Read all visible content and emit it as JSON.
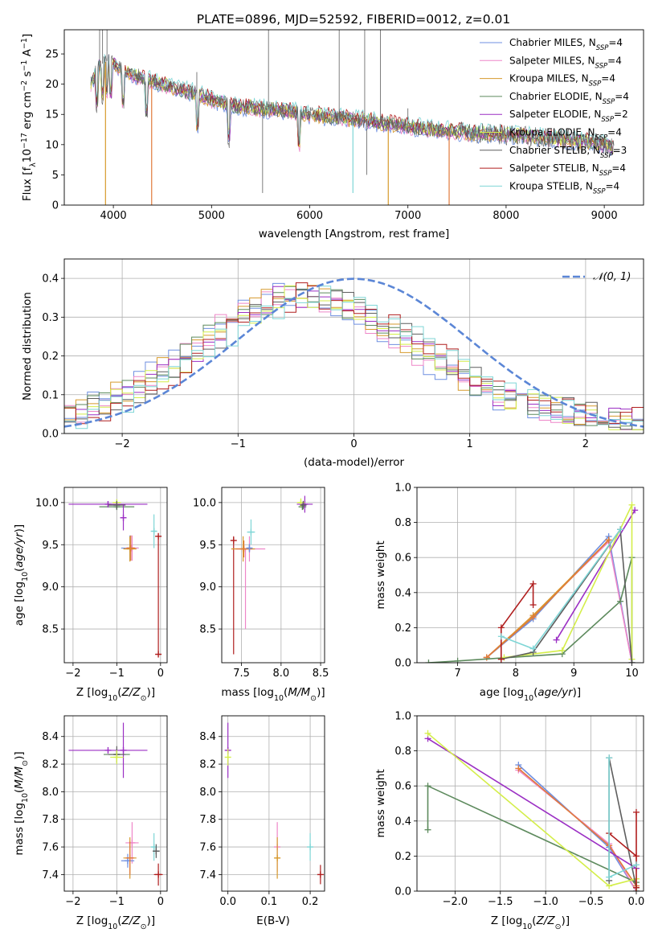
{
  "title": "PLATE=0896, MJD=52592, FIBERID=0012, z=0.01",
  "colors": {
    "chabrier_miles": "#6f8fe0",
    "salpeter_miles": "#ee86c8",
    "kroupa_miles": "#d69a2c",
    "chabrier_elodie": "#5d8a5d",
    "salpeter_elodie": "#9b2fc4",
    "kroupa_elodie": "#d4ee4a",
    "chabrier_stelib": "#5e5e5e",
    "salpeter_stelib": "#b01e1e",
    "kroupa_stelib": "#7fd6d6",
    "orange_line": "#e07a3a",
    "normal": "#5b86d6"
  },
  "chart_data": [
    {
      "id": "spectrum",
      "type": "line",
      "title": "PLATE=0896, MJD=52592, FIBERID=0012, z=0.01",
      "xlabel": "wavelength [Angstrom, rest frame]",
      "ylabel": "Flux [fλ10⁻¹⁷ erg cm⁻² s⁻¹ A⁻¹]",
      "xlim": [
        3500,
        9400
      ],
      "ylim": [
        0,
        29
      ],
      "xticks": [
        4000,
        5000,
        6000,
        7000,
        8000,
        9000
      ],
      "yticks": [
        0,
        5,
        10,
        15,
        20,
        25
      ],
      "legend_position": "top-right",
      "legend": [
        "Chabrier MILES, N_SSP=4",
        "Salpeter MILES, N_SSP=4",
        "Kroupa MILES, N_SSP=4",
        "Chabrier ELODIE, N_SSP=4",
        "Salpeter ELODIE, N_SSP=2",
        "Kroupa ELODIE, N_SSP=4",
        "Chabrier STELIB, N_SSP=3",
        "Salpeter STELIB, N_SSP=4",
        "Kroupa STELIB, N_SSP=4"
      ],
      "continuum": {
        "x": [
          3770,
          3850,
          3950,
          4050,
          4150,
          4300,
          4500,
          4700,
          4850,
          5000,
          5200,
          5500,
          5800,
          6000,
          6300,
          6560,
          6800,
          7000,
          7300,
          7600,
          7900,
          8200,
          8500,
          8800,
          9000,
          9100
        ],
        "y": [
          20,
          23,
          24,
          23,
          22,
          21,
          20,
          19,
          18.5,
          17.5,
          16.5,
          16,
          15.5,
          15,
          14.5,
          14,
          13.5,
          13,
          12.5,
          12,
          11.8,
          11.5,
          11,
          10.5,
          10,
          9.5
        ]
      }
    },
    {
      "id": "residuals",
      "type": "line",
      "xlabel": "(data-model)/error",
      "ylabel": "Normed distribution",
      "xlim": [
        -2.5,
        2.5
      ],
      "ylim": [
        0,
        0.45
      ],
      "xticks": [
        -2,
        -1,
        0,
        1,
        2
      ],
      "yticks": [
        0.0,
        0.1,
        0.2,
        0.3,
        0.4
      ],
      "legend": [
        "𝒩(0, 1)"
      ],
      "legend_position": "top-right",
      "hist_profile": {
        "x": [
          -2.5,
          -2.2,
          -1.9,
          -1.6,
          -1.3,
          -1.0,
          -0.7,
          -0.5,
          -0.3,
          0.0,
          0.3,
          0.6,
          0.9,
          1.2,
          1.5,
          1.8,
          2.1,
          2.5
        ],
        "y": [
          0.04,
          0.07,
          0.11,
          0.16,
          0.23,
          0.29,
          0.34,
          0.36,
          0.35,
          0.33,
          0.28,
          0.21,
          0.16,
          0.11,
          0.08,
          0.06,
          0.04,
          0.03
        ]
      }
    },
    {
      "id": "age-vs-Z",
      "type": "scatter",
      "xlabel": "Z [log10(Z/Z⊙)]",
      "ylabel": "age  [log10(age/yr)]",
      "xlim": [
        -2.2,
        0.15
      ],
      "ylim": [
        8.1,
        10.18
      ],
      "xticks": [
        -2,
        -1,
        0
      ],
      "yticks": [
        8.5,
        9.0,
        9.5,
        10.0
      ],
      "points": [
        {
          "c": "chabrier_miles",
          "x": -0.7,
          "y": 9.46,
          "xe": 0.2,
          "ye": 0.15
        },
        {
          "c": "salpeter_miles",
          "x": -0.65,
          "y": 9.46,
          "xe": 0.15,
          "ye": 0.15
        },
        {
          "c": "kroupa_miles",
          "x": -0.7,
          "y": 9.45,
          "xe": 0.15,
          "ye": 0.15
        },
        {
          "c": "orange_line",
          "x": -0.68,
          "y": 9.46,
          "xe": 0.1,
          "ye": 0.15
        },
        {
          "c": "chabrier_elodie",
          "x": -1.0,
          "y": 9.95,
          "xe": 0.4,
          "ye": 0.03
        },
        {
          "c": "salpeter_elodie",
          "x": -1.2,
          "y": 9.98,
          "xe": 0.9,
          "ye": 0.03
        },
        {
          "c": "kroupa_elodie",
          "x": -1.0,
          "y": 10.0,
          "xe": 0.1,
          "ye": 0.04
        },
        {
          "c": "chabrier_stelib",
          "x": -1.0,
          "y": 9.97,
          "xe": 0.2,
          "ye": 0.05
        },
        {
          "c": "salpeter_stelib",
          "x": -0.05,
          "y": 8.2,
          "xe": 0.05,
          "ye": 0.0
        },
        {
          "c": "salpeter_stelib",
          "x": -0.05,
          "y": 9.6,
          "xe": 0.0,
          "ye": 0.0
        },
        {
          "c": "kroupa_stelib",
          "x": -0.15,
          "y": 9.66,
          "xe": 0.05,
          "ye": 0.2
        },
        {
          "c": "salpeter_elodie",
          "x": -0.85,
          "y": 9.82,
          "xe": 0.0,
          "ye": 0.15
        }
      ],
      "vlines": [
        {
          "c": "salpeter_stelib",
          "x": -0.05,
          "y0": 8.2,
          "y1": 9.6
        }
      ]
    },
    {
      "id": "age-vs-mass",
      "type": "scatter",
      "xlabel": "mass [log10(M/M⊙)]",
      "ylabel": "",
      "xlim": [
        7.25,
        8.55
      ],
      "ylim": [
        8.1,
        10.18
      ],
      "xticks": [
        7.5,
        8.0,
        8.5
      ],
      "yticks": [
        8.5,
        9.0,
        9.5,
        10.0
      ],
      "points": [
        {
          "c": "salpeter_miles",
          "x": 7.6,
          "y": 9.45,
          "xe": 0.2,
          "ye": 0.15
        },
        {
          "c": "kroupa_miles",
          "x": 7.52,
          "y": 9.45,
          "xe": 0.15,
          "ye": 0.15
        },
        {
          "c": "orange_line",
          "x": 7.53,
          "y": 9.45,
          "xe": 0.1,
          "ye": 0.1
        },
        {
          "c": "chabrier_elodie",
          "x": 8.27,
          "y": 9.95,
          "xe": 0.05,
          "ye": 0.03
        },
        {
          "c": "salpeter_elodie",
          "x": 8.3,
          "y": 9.98,
          "xe": 0.1,
          "ye": 0.1
        },
        {
          "c": "kroupa_elodie",
          "x": 8.25,
          "y": 10.0,
          "xe": 0.05,
          "ye": 0.05
        },
        {
          "c": "chabrier_stelib",
          "x": 8.28,
          "y": 9.97,
          "xe": 0.04,
          "ye": 0.05
        },
        {
          "c": "salpeter_stelib",
          "x": 7.4,
          "y": 9.55,
          "xe": 0.0,
          "ye": 0.0
        },
        {
          "c": "kroupa_stelib",
          "x": 7.62,
          "y": 9.65,
          "xe": 0.05,
          "ye": 0.15
        },
        {
          "c": "chabrier_miles",
          "x": 7.6,
          "y": 9.46,
          "xe": 0.03,
          "ye": 0.05
        }
      ],
      "vlines": [
        {
          "c": "salpeter_stelib",
          "x": 7.4,
          "y0": 8.2,
          "y1": 9.6
        },
        {
          "c": "salpeter_miles",
          "x": 7.55,
          "y0": 8.5,
          "y1": 9.45
        }
      ]
    },
    {
      "id": "weight-vs-age",
      "type": "line",
      "xlabel": "age  [log10(age/yr)]",
      "ylabel": "mass weight",
      "xlim": [
        6.3,
        10.2
      ],
      "ylim": [
        0,
        1.0
      ],
      "xticks": [
        7,
        8,
        9,
        10
      ],
      "yticks": [
        0.0,
        0.2,
        0.4,
        0.6,
        0.8,
        1.0
      ],
      "series": [
        {
          "c": "chabrier_miles",
          "x": [
            7.5,
            8.3,
            9.6,
            10.0
          ],
          "y": [
            0.03,
            0.25,
            0.72,
            0.0
          ]
        },
        {
          "c": "salpeter_miles",
          "x": [
            7.5,
            8.3,
            9.6,
            10.0
          ],
          "y": [
            0.03,
            0.27,
            0.69,
            0.0
          ]
        },
        {
          "c": "kroupa_miles",
          "x": [
            7.5,
            8.3,
            9.6
          ],
          "y": [
            0.03,
            0.27,
            0.7
          ]
        },
        {
          "c": "orange_line",
          "x": [
            7.5,
            8.3,
            9.6
          ],
          "y": [
            0.03,
            0.26,
            0.7
          ]
        },
        {
          "c": "chabrier_elodie",
          "x": [
            6.5,
            7.0,
            8.8,
            9.8,
            10.0,
            10.0
          ],
          "y": [
            0.0,
            0.01,
            0.05,
            0.35,
            0.6,
            0.0
          ]
        },
        {
          "c": "salpeter_elodie",
          "x": [
            8.7,
            10.05
          ],
          "y": [
            0.13,
            0.87
          ]
        },
        {
          "c": "kroupa_elodie",
          "x": [
            7.8,
            8.8,
            10.0,
            10.0
          ],
          "y": [
            0.03,
            0.07,
            0.9,
            0.02
          ]
        },
        {
          "c": "chabrier_stelib",
          "x": [
            7.75,
            8.3,
            9.8,
            10.0
          ],
          "y": [
            0.02,
            0.06,
            0.76,
            0.0
          ]
        },
        {
          "c": "salpeter_stelib",
          "x": [
            7.75,
            7.75,
            8.3,
            8.3
          ],
          "y": [
            0.02,
            0.2,
            0.45,
            0.33
          ]
        },
        {
          "c": "kroupa_stelib",
          "x": [
            7.75,
            8.3,
            9.8
          ],
          "y": [
            0.15,
            0.08,
            0.76
          ]
        }
      ]
    },
    {
      "id": "mass-vs-Z",
      "type": "scatter",
      "xlabel": "Z [log10(Z/Z⊙)]",
      "ylabel": "mass [log10(M/M⊙)]",
      "xlim": [
        -2.2,
        0.15
      ],
      "ylim": [
        7.28,
        8.55
      ],
      "xticks": [
        -2,
        -1,
        0
      ],
      "yticks": [
        7.4,
        7.6,
        7.8,
        8.0,
        8.2,
        8.4
      ],
      "points": [
        {
          "c": "salpeter_elodie",
          "x": -1.2,
          "y": 8.3,
          "xe": 0.9,
          "ye": 0.0
        },
        {
          "c": "salpeter_elodie",
          "x": -0.85,
          "y": 8.3,
          "xe": 0.0,
          "ye": 0.2
        },
        {
          "c": "chabrier_elodie",
          "x": -1.0,
          "y": 8.27,
          "xe": 0.3,
          "ye": 0.04
        },
        {
          "c": "chabrier_stelib",
          "x": -1.0,
          "y": 8.27,
          "xe": 0.2,
          "ye": 0.06
        },
        {
          "c": "kroupa_elodie",
          "x": -1.0,
          "y": 8.25,
          "xe": 0.15,
          "ye": 0.05
        },
        {
          "c": "salpeter_miles",
          "x": -0.65,
          "y": 7.63,
          "xe": 0.15,
          "ye": 0.15
        },
        {
          "c": "kroupa_miles",
          "x": -0.7,
          "y": 7.52,
          "xe": 0.15,
          "ye": 0.15
        },
        {
          "c": "chabrier_miles",
          "x": -0.75,
          "y": 7.5,
          "xe": 0.15,
          "ye": 0.05
        },
        {
          "c": "orange_line",
          "x": -0.7,
          "y": 7.52,
          "xe": 0.1,
          "ye": 0.12
        },
        {
          "c": "kroupa_stelib",
          "x": -0.15,
          "y": 7.6,
          "xe": 0.05,
          "ye": 0.1
        },
        {
          "c": "chabrier_stelib",
          "x": -0.1,
          "y": 7.57,
          "xe": 0.08,
          "ye": 0.05
        },
        {
          "c": "salpeter_stelib",
          "x": -0.05,
          "y": 7.4,
          "xe": 0.1,
          "ye": 0.08
        }
      ]
    },
    {
      "id": "mass-vs-ebv",
      "type": "scatter",
      "xlabel": "E(B-V)",
      "ylabel": "",
      "xlim": [
        -0.015,
        0.235
      ],
      "ylim": [
        7.28,
        8.55
      ],
      "xticks": [
        0.0,
        0.1,
        0.2
      ],
      "yticks": [
        7.4,
        7.6,
        7.8,
        8.0,
        8.2,
        8.4
      ],
      "points": [
        {
          "c": "salpeter_elodie",
          "x": 0.0,
          "y": 8.3,
          "xe": 0.0,
          "ye": 0.2
        },
        {
          "c": "kroupa_elodie",
          "x": 0.0,
          "y": 8.25,
          "xe": 0.0,
          "ye": 0.06
        },
        {
          "c": "salpeter_miles",
          "x": 0.12,
          "y": 7.6,
          "xe": 0.0,
          "ye": 0.18
        },
        {
          "c": "kroupa_miles",
          "x": 0.12,
          "y": 7.52,
          "xe": 0.0,
          "ye": 0.15
        },
        {
          "c": "kroupa_stelib",
          "x": 0.2,
          "y": 7.6,
          "xe": 0.0,
          "ye": 0.1
        },
        {
          "c": "salpeter_stelib",
          "x": 0.225,
          "y": 7.4,
          "xe": 0.0,
          "ye": 0.07
        }
      ]
    },
    {
      "id": "weight-vs-Z",
      "type": "line",
      "xlabel": "Z [log10(Z/Z⊙)]",
      "ylabel": "mass weight",
      "xlim": [
        -2.42,
        0.08
      ],
      "ylim": [
        0,
        1.0
      ],
      "xticks": [
        -2.0,
        -1.5,
        -1.0,
        -0.5,
        0.0
      ],
      "yticks": [
        0.0,
        0.2,
        0.4,
        0.6,
        0.8,
        1.0
      ],
      "series": [
        {
          "c": "chabrier_miles",
          "x": [
            -1.3,
            -0.3,
            0.0
          ],
          "y": [
            0.72,
            0.25,
            0.0
          ]
        },
        {
          "c": "salpeter_miles",
          "x": [
            -1.3,
            -0.3,
            0.0
          ],
          "y": [
            0.69,
            0.27,
            0.0
          ]
        },
        {
          "c": "orange_line",
          "x": [
            -1.3,
            -0.3,
            0.0
          ],
          "y": [
            0.7,
            0.26,
            0.03
          ]
        },
        {
          "c": "chabrier_elodie",
          "x": [
            -2.3,
            -2.3,
            0.0,
            0.0
          ],
          "y": [
            0.35,
            0.6,
            0.05,
            0.0
          ]
        },
        {
          "c": "salpeter_elodie",
          "x": [
            -2.3,
            0.0
          ],
          "y": [
            0.87,
            0.13
          ]
        },
        {
          "c": "kroupa_elodie",
          "x": [
            -2.3,
            -0.3,
            0.0,
            0.0
          ],
          "y": [
            0.9,
            0.03,
            0.07,
            0.02
          ]
        },
        {
          "c": "chabrier_stelib",
          "x": [
            -0.3,
            -0.3,
            0.0
          ],
          "y": [
            0.06,
            0.76,
            0.02
          ]
        },
        {
          "c": "salpeter_stelib",
          "x": [
            -0.3,
            0.0,
            0.0,
            0.0
          ],
          "y": [
            0.33,
            0.2,
            0.45,
            0.02
          ]
        },
        {
          "c": "kroupa_stelib",
          "x": [
            -0.3,
            -0.3,
            0.0
          ],
          "y": [
            0.76,
            0.08,
            0.15
          ]
        }
      ]
    }
  ]
}
